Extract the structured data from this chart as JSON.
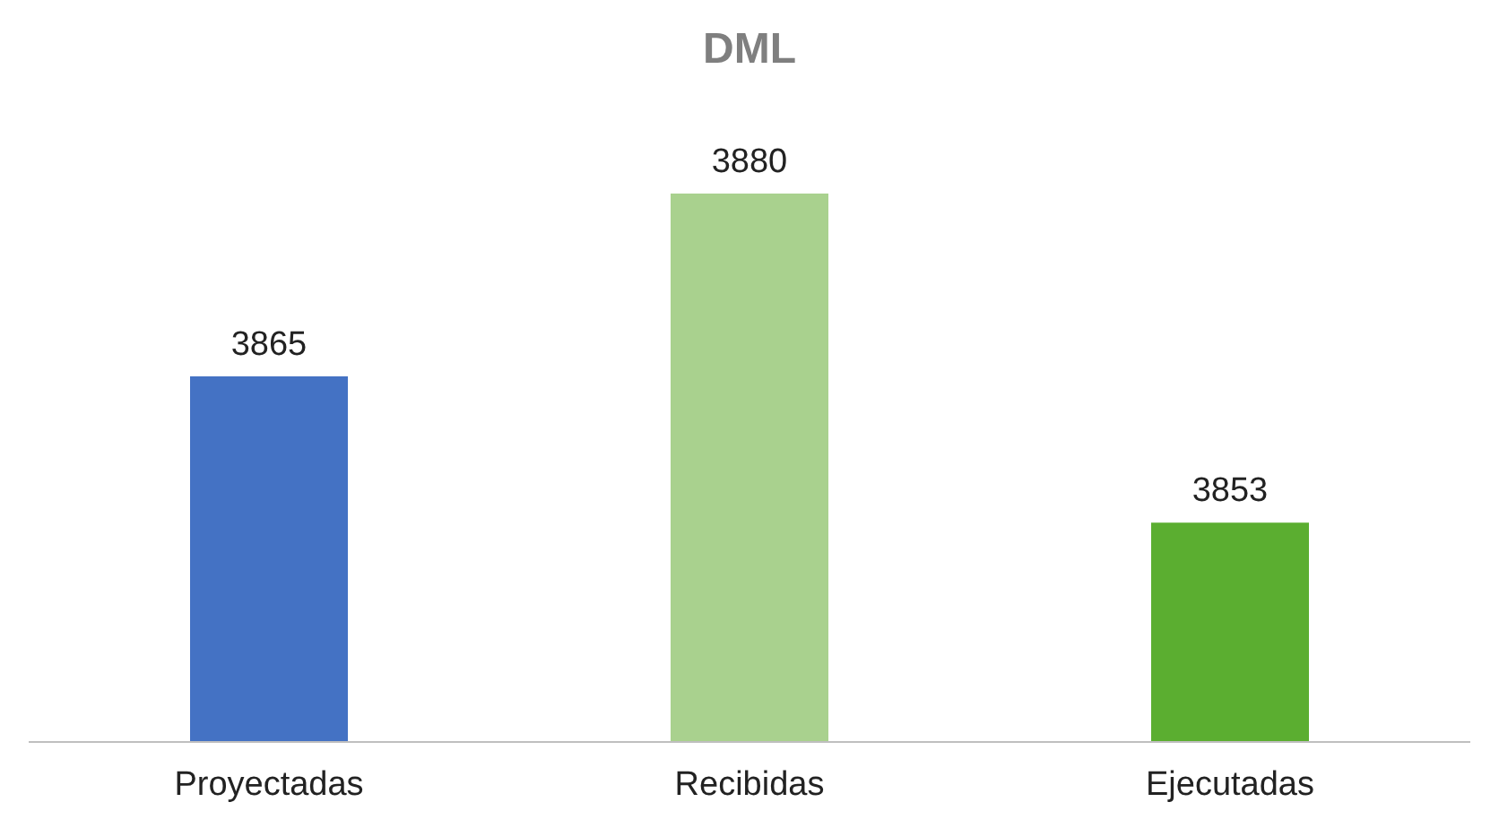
{
  "chart_data": {
    "type": "bar",
    "title": "DML",
    "categories": [
      "Proyectadas",
      "Recibidas",
      "Ejecutadas"
    ],
    "values": [
      3865,
      3880,
      3853
    ],
    "colors": [
      "#4472c4",
      "#a9d18e",
      "#5bae30"
    ],
    "ylim": [
      3835,
      3880
    ],
    "tick_labels": "x",
    "data_labels": true
  }
}
